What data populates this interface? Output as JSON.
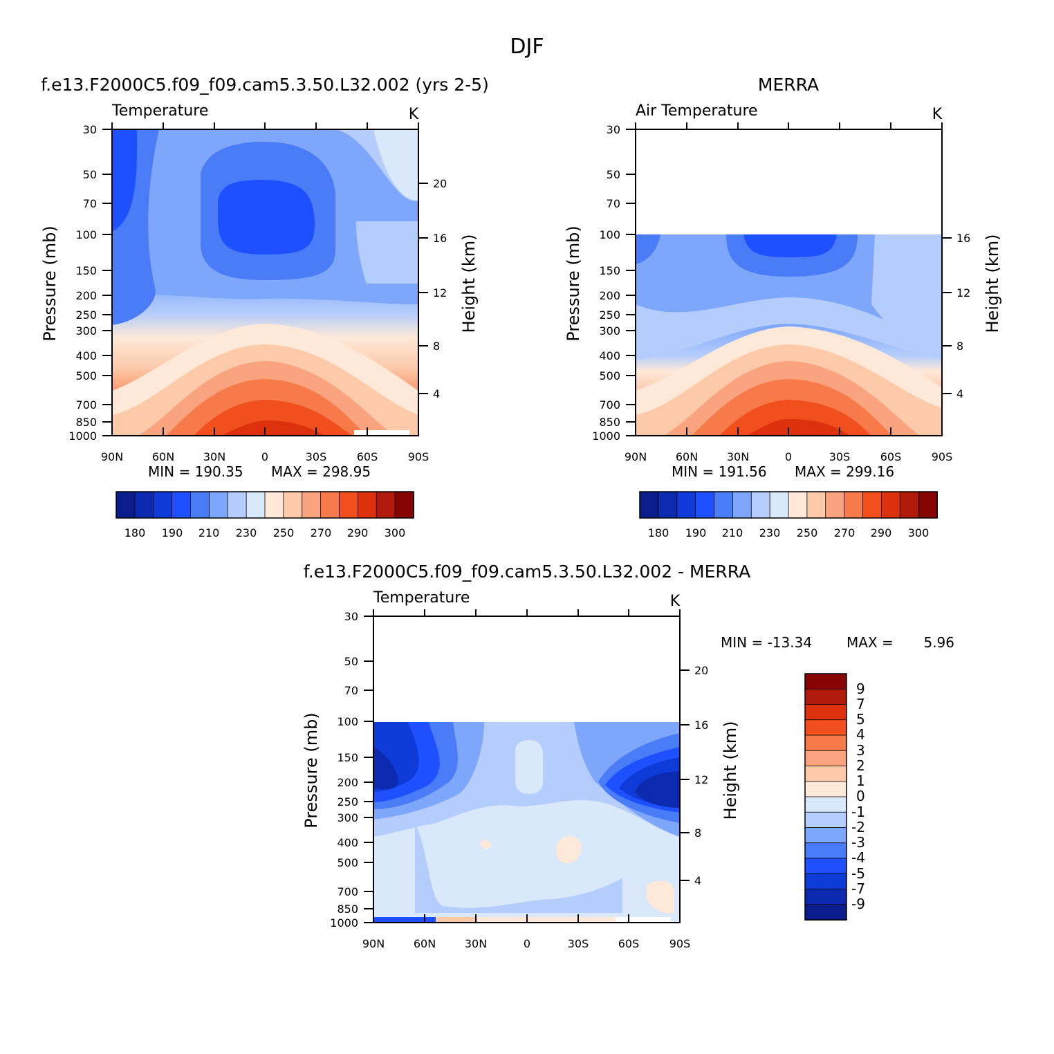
{
  "page_title": "DJF",
  "colors": {
    "temperature_scale": [
      "#0a1d8a",
      "#0b2ab0",
      "#0e3ad7",
      "#1e50ff",
      "#4a7cf8",
      "#7ea6fb",
      "#b4cdfc",
      "#d9e8fb",
      "#fee9d9",
      "#fcc9a9",
      "#f9a47e",
      "#f77b4a",
      "#f14f1e",
      "#dd300d",
      "#b01a0a",
      "#870404"
    ],
    "difference_scale": [
      "#0a1d8a",
      "#0b2ab0",
      "#0e3ad7",
      "#1e50ff",
      "#4a7cf8",
      "#7ea6fb",
      "#b4cdfc",
      "#d9e8fb",
      "#fee9d9",
      "#fcc9a9",
      "#f9a47e",
      "#f77b4a",
      "#f14f1e",
      "#dd300d",
      "#b01a0a",
      "#870404"
    ]
  },
  "chart_data": [
    {
      "type": "heatmap",
      "title": "f.e13.F2000C5.f09_f09.cam5.3.50.L32.002 (yrs 2-5)",
      "variable_label": "Temperature",
      "units": "K",
      "xlabel": "",
      "ylabel": "Pressure (mb)",
      "y2label": "Height (km)",
      "x_ticks": [
        "90N",
        "60N",
        "30N",
        "0",
        "30S",
        "60S",
        "90S"
      ],
      "y_ticks": [
        "30",
        "50",
        "70",
        "100",
        "150",
        "200",
        "250",
        "300",
        "400",
        "500",
        "700",
        "850",
        "1000"
      ],
      "y2_ticks": [
        "4",
        "8",
        "12",
        "16",
        "20"
      ],
      "xlim": [
        90,
        -90
      ],
      "ylim": [
        1000,
        30
      ],
      "y_scale": "log",
      "min_label": "MIN = 190.35",
      "max_label": "MAX = 298.95",
      "min": 190.35,
      "max": 298.95,
      "colorbar_labels": [
        "180",
        "190",
        "210",
        "230",
        "250",
        "270",
        "290",
        "300"
      ]
    },
    {
      "type": "heatmap",
      "title": "MERRA",
      "variable_label": "Air Temperature",
      "units": "K",
      "xlabel": "",
      "ylabel": "Pressure (mb)",
      "y2label": "Height (km)",
      "x_ticks": [
        "90N",
        "60N",
        "30N",
        "0",
        "30S",
        "60S",
        "90S"
      ],
      "y_ticks": [
        "30",
        "50",
        "70",
        "100",
        "150",
        "200",
        "250",
        "300",
        "400",
        "500",
        "700",
        "850",
        "1000"
      ],
      "y2_ticks": [
        "4",
        "8",
        "12",
        "16"
      ],
      "xlim": [
        90,
        -90
      ],
      "ylim": [
        1000,
        30
      ],
      "y_scale": "log",
      "min_label": "MIN = 191.56",
      "max_label": "MAX = 299.16",
      "min": 191.56,
      "max": 299.16,
      "colorbar_labels": [
        "180",
        "190",
        "210",
        "230",
        "250",
        "270",
        "290",
        "300"
      ]
    },
    {
      "type": "heatmap",
      "title": "f.e13.F2000C5.f09_f09.cam5.3.50.L32.002 - MERRA",
      "variable_label": "Temperature",
      "units": "K",
      "xlabel": "",
      "ylabel": "Pressure (mb)",
      "y2label": "Height (km)",
      "x_ticks": [
        "90N",
        "60N",
        "30N",
        "0",
        "30S",
        "60S",
        "90S"
      ],
      "y_ticks": [
        "30",
        "50",
        "70",
        "100",
        "150",
        "200",
        "250",
        "300",
        "400",
        "500",
        "700",
        "850",
        "1000"
      ],
      "y2_ticks": [
        "4",
        "8",
        "12",
        "16",
        "20"
      ],
      "xlim": [
        90,
        -90
      ],
      "ylim": [
        1000,
        30
      ],
      "y_scale": "log",
      "min_label": "MIN = -13.34",
      "max_label": "MAX =",
      "max_value_text": "5.96",
      "min": -13.34,
      "max": 5.96,
      "colorbar_labels": [
        "9",
        "7",
        "5",
        "4",
        "3",
        "2",
        "1",
        "0",
        "-1",
        "-2",
        "-3",
        "-4",
        "-5",
        "-7",
        "-9"
      ]
    }
  ]
}
